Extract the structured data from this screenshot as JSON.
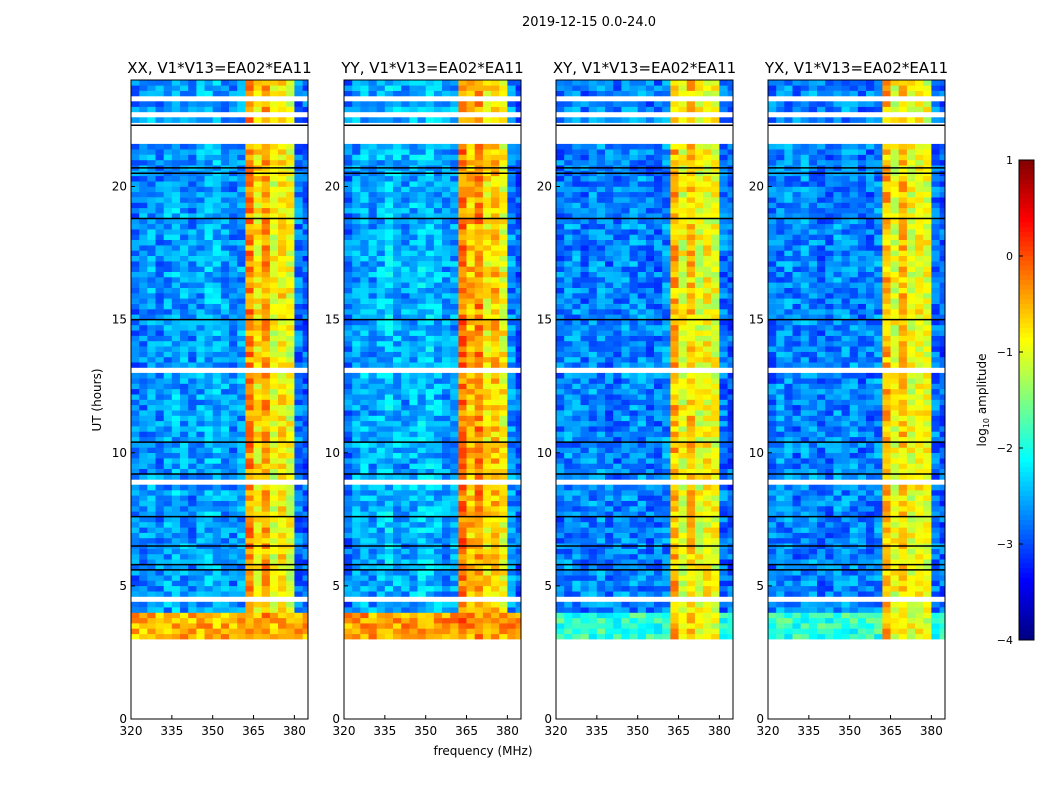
{
  "chart_data": {
    "type": "heatmap",
    "suptitle": "2019-12-15 0.0-24.0",
    "xlabel": "frequency (MHz)",
    "ylabel": "UT (hours)",
    "xlim": [
      320,
      385
    ],
    "ylim": [
      0,
      24
    ],
    "xticks": [
      "320",
      "335",
      "350",
      "365",
      "380"
    ],
    "yticks": [
      "0",
      "5",
      "10",
      "15",
      "20"
    ],
    "freq_bin_edges_mhz": [
      320,
      323,
      326,
      329,
      332,
      335,
      338,
      341,
      344,
      347,
      350,
      353,
      356,
      359,
      362,
      365,
      368,
      371,
      374,
      377,
      380,
      383,
      386
    ],
    "time_step_hours": 0.2,
    "data_start_hour": 3.0,
    "panels": [
      {
        "title": "XX, V1*V13=EA02*EA11",
        "band_profile": [
          -2.8,
          -2.7,
          -2.6,
          -2.7,
          -2.6,
          -2.5,
          -2.6,
          -2.7,
          -2.6,
          -2.5,
          -2.5,
          -2.6,
          -2.7,
          -2.6,
          -0.3,
          -0.8,
          -0.4,
          -1.0,
          -0.8,
          -1.0,
          -2.8,
          -2.9
        ],
        "low_band_value": -0.5
      },
      {
        "title": "YY, V1*V13=EA02*EA11",
        "band_profile": [
          -2.8,
          -2.6,
          -2.5,
          -2.6,
          -2.5,
          -2.4,
          -2.5,
          -2.6,
          -2.5,
          -2.4,
          -2.4,
          -2.5,
          -2.6,
          -2.6,
          -0.2,
          -0.6,
          -0.3,
          -0.8,
          -0.6,
          -0.9,
          -2.7,
          -2.9
        ],
        "low_band_value": -0.4
      },
      {
        "title": "XY, V1*V13=EA02*EA11",
        "band_profile": [
          -2.8,
          -2.7,
          -2.7,
          -2.8,
          -2.7,
          -2.7,
          -2.8,
          -2.8,
          -2.7,
          -2.7,
          -2.7,
          -2.8,
          -2.8,
          -2.7,
          -0.5,
          -1.0,
          -0.6,
          -1.0,
          -0.9,
          -1.0,
          -2.8,
          -2.9
        ],
        "low_band_value": -1.9
      },
      {
        "title": "YX, V1*V13=EA02*EA11",
        "band_profile": [
          -2.8,
          -2.7,
          -2.7,
          -2.8,
          -2.7,
          -2.7,
          -2.8,
          -2.8,
          -2.7,
          -2.7,
          -2.7,
          -2.8,
          -2.8,
          -2.7,
          -0.5,
          -1.0,
          -0.6,
          -1.0,
          -0.9,
          -1.0,
          -2.8,
          -2.9
        ],
        "low_band_value": -1.9
      }
    ],
    "low_band_hours": [
      3.0,
      4.0
    ],
    "flagged_hours": [
      [
        0,
        3
      ],
      [
        4.5,
        4.6
      ],
      [
        8.8,
        9.0
      ],
      [
        10.7,
        10.8
      ],
      [
        12.9,
        13.2
      ],
      [
        21.6,
        22.3
      ],
      [
        22.6,
        22.7
      ],
      [
        23.2,
        23.4
      ]
    ],
    "flag_lines_hours": [
      5.6,
      5.8,
      6.5,
      7.6,
      9.2,
      10.4,
      15.0,
      18.8,
      20.5,
      20.7,
      22.3
    ],
    "colorbar": {
      "label": "log10 amplitude",
      "label_main": "log",
      "label_sub": "10",
      "label_rest": " amplitude",
      "range": [
        -4,
        1
      ],
      "ticks": [
        "1",
        "0",
        "−1",
        "−2",
        "−3",
        "−4"
      ],
      "colormap": "jet"
    }
  }
}
